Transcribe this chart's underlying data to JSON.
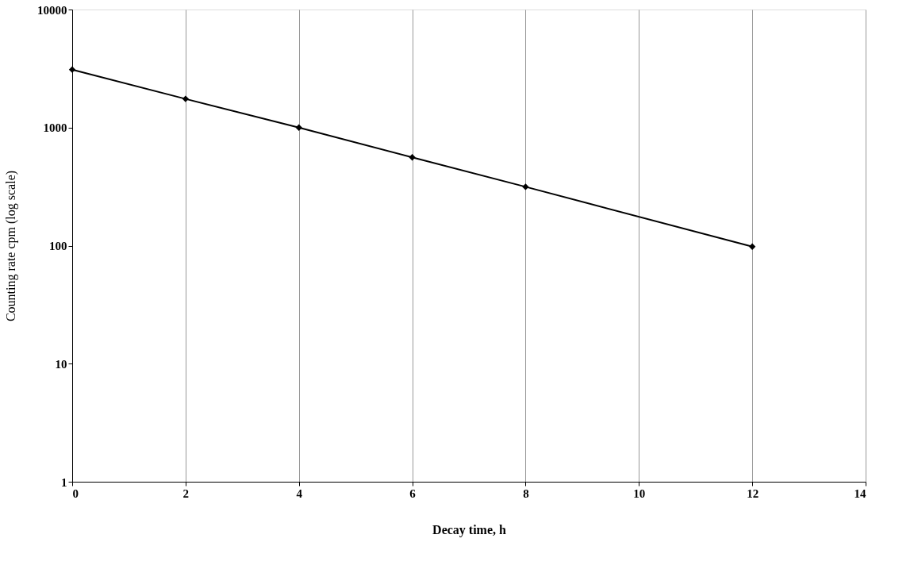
{
  "chart_data": {
    "type": "line",
    "xlabel": "Decay time, h",
    "ylabel": "Counting rate cpm  (log scale)",
    "x": [
      0,
      2,
      4,
      6,
      8,
      12
    ],
    "series": [
      {
        "color": "#000000",
        "values": [
          3100,
          1750,
          1000,
          560,
          315,
          98
        ]
      }
    ],
    "xlim": [
      0,
      14
    ],
    "xticks": [
      0,
      2,
      4,
      6,
      8,
      10,
      12,
      14
    ],
    "ylim": [
      1,
      10000
    ],
    "yticks": [
      1,
      10,
      100,
      1000,
      10000
    ],
    "log": "y",
    "grid": "x",
    "marker": "diamond",
    "line_style": "solid"
  }
}
